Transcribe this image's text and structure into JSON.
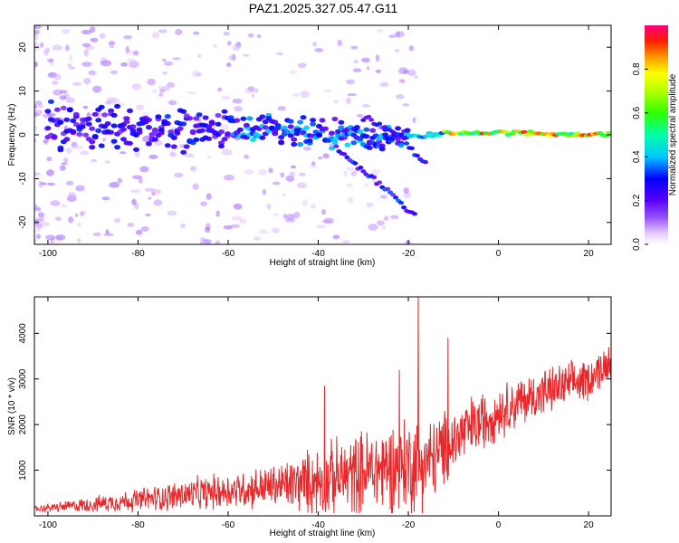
{
  "chart_data": [
    {
      "type": "heatmap",
      "title": "PAZ1.2025.327.05.47.G11",
      "xlabel": "Height of straight line (km)",
      "ylabel": "Frequency (Hz)",
      "xlim": [
        -103,
        25
      ],
      "ylim": [
        -25,
        25
      ],
      "xticks": [
        -100,
        -80,
        -60,
        -40,
        -20,
        0,
        20
      ],
      "yticks": [
        -20,
        -10,
        0,
        10,
        20
      ],
      "colorbar": {
        "label": "Normalized spectral amplitude",
        "range": [
          0,
          1
        ],
        "ticks": [
          0.0,
          0.2,
          0.4,
          0.6,
          0.8
        ]
      },
      "main_track": [
        {
          "x": -95,
          "f": 2
        },
        {
          "x": -80,
          "f": 1.5
        },
        {
          "x": -60,
          "f": 1
        },
        {
          "x": -40,
          "f": 0
        },
        {
          "x": -25,
          "f": -1
        },
        {
          "x": -15,
          "f": 0
        },
        {
          "x": -10,
          "f": 0.5
        },
        {
          "x": 0,
          "f": 0.5
        },
        {
          "x": 25,
          "f": 0
        }
      ],
      "branch_up": [
        {
          "x": -30,
          "f": 4
        },
        {
          "x": -22,
          "f": 0
        },
        {
          "x": -16,
          "f": -7
        }
      ],
      "branch_down": [
        {
          "x": -36,
          "f": -3
        },
        {
          "x": -28,
          "f": -10
        },
        {
          "x": -22,
          "f": -15
        },
        {
          "x": -18,
          "f": -19
        }
      ]
    },
    {
      "type": "line",
      "xlabel": "Height of straight line (km)",
      "ylabel": "SNR (10 * v/v)",
      "xlim": [
        -103,
        25
      ],
      "ylim": [
        0,
        4800
      ],
      "xticks": [
        -100,
        -80,
        -60,
        -40,
        -20,
        0,
        20
      ],
      "yticks": [
        1000,
        2000,
        3000,
        4000
      ],
      "series": [
        {
          "name": "SNR",
          "color": "#e8282a",
          "baseline": [
            {
              "x": -103,
              "y": 150
            },
            {
              "x": -90,
              "y": 250
            },
            {
              "x": -75,
              "y": 400
            },
            {
              "x": -60,
              "y": 550
            },
            {
              "x": -45,
              "y": 700
            },
            {
              "x": -35,
              "y": 850
            },
            {
              "x": -25,
              "y": 1050
            },
            {
              "x": -15,
              "y": 1200
            },
            {
              "x": -8,
              "y": 1800
            },
            {
              "x": 0,
              "y": 2300
            },
            {
              "x": 10,
              "y": 2700
            },
            {
              "x": 20,
              "y": 3000
            },
            {
              "x": 25,
              "y": 3400
            }
          ],
          "amplitude": [
            {
              "x": -103,
              "y": 80
            },
            {
              "x": -85,
              "y": 250
            },
            {
              "x": -70,
              "y": 400
            },
            {
              "x": -50,
              "y": 550
            },
            {
              "x": -40,
              "y": 900
            },
            {
              "x": -30,
              "y": 1100
            },
            {
              "x": -20,
              "y": 1300
            },
            {
              "x": -10,
              "y": 900
            },
            {
              "x": 0,
              "y": 700
            },
            {
              "x": 25,
              "y": 500
            }
          ],
          "peaks": [
            {
              "x": -38.6,
              "y": 2850
            },
            {
              "x": -22,
              "y": 3200
            },
            {
              "x": -17.8,
              "y": 4850
            },
            {
              "x": -11.2,
              "y": 3900
            },
            {
              "x": 24.5,
              "y": 3700
            }
          ]
        }
      ]
    }
  ]
}
